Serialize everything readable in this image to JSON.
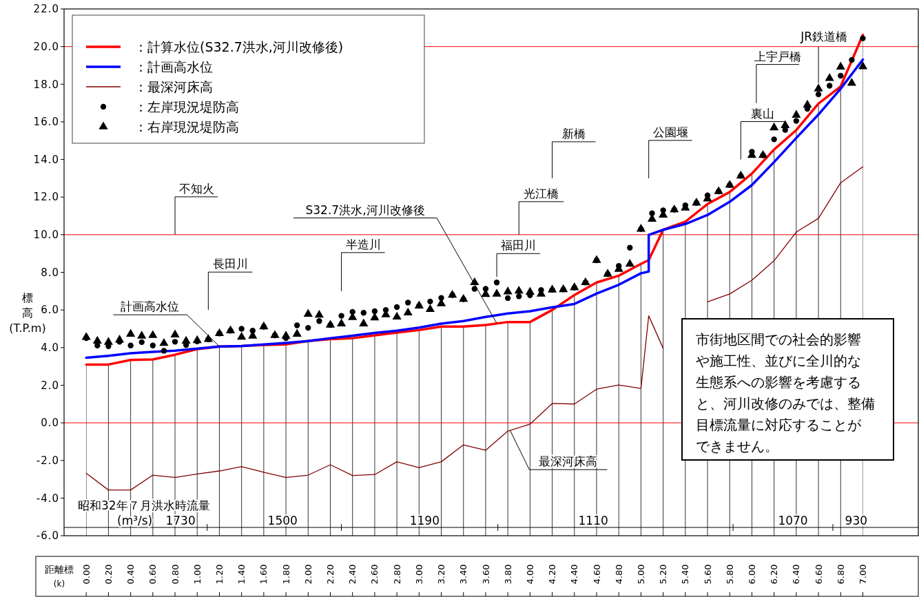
{
  "chart_data": {
    "type": "line",
    "ylabel": "標高 (T.P.m)",
    "xlabel": "距離標 (k)",
    "x": [
      0,
      0.1,
      0.2,
      0.3,
      0.4,
      0.5,
      0.6,
      0.7,
      0.8,
      0.9,
      1.0,
      1.1,
      1.2,
      1.3,
      1.4,
      1.5,
      1.6,
      1.7,
      1.8,
      1.9,
      2.0,
      2.1,
      2.2,
      2.3,
      2.4,
      2.5,
      2.6,
      2.7,
      2.8,
      2.9,
      3.0,
      3.1,
      3.2,
      3.3,
      3.4,
      3.5,
      3.6,
      3.7,
      3.8,
      3.9,
      4.0,
      4.1,
      4.2,
      4.3,
      4.4,
      4.5,
      4.6,
      4.7,
      4.8,
      4.9,
      5.0,
      5.1,
      5.2,
      5.3,
      5.4,
      5.5,
      5.6,
      5.7,
      5.8,
      5.9,
      6.0,
      6.1,
      6.2,
      6.3,
      6.4,
      6.5,
      6.6,
      6.7,
      6.8,
      6.9,
      7.0
    ],
    "series": [
      {
        "name": "：計算水位(S32.7洪水,河川改修後)",
        "color": "#ff0000",
        "x": [
          0,
          0.2,
          0.4,
          0.6,
          0.8,
          1.0,
          1.2,
          1.4,
          1.6,
          1.8,
          2.0,
          2.2,
          2.4,
          2.6,
          2.8,
          3.0,
          3.2,
          3.4,
          3.6,
          3.8,
          4.0,
          4.2,
          4.4,
          4.6,
          4.8,
          5.0,
          5.07,
          5.2,
          5.4,
          5.6,
          5.8,
          6.0,
          6.2,
          6.4,
          6.6,
          6.8,
          7.0
        ],
        "values": [
          3.1,
          3.1,
          3.34,
          3.37,
          3.62,
          3.92,
          4.06,
          4.08,
          4.14,
          4.17,
          4.35,
          4.45,
          4.5,
          4.65,
          4.8,
          4.93,
          5.12,
          5.12,
          5.2,
          5.36,
          5.36,
          6.0,
          6.79,
          7.46,
          7.82,
          8.45,
          8.65,
          10.26,
          10.69,
          11.63,
          12.27,
          13.25,
          14.53,
          15.56,
          16.97,
          17.88,
          20.62
        ]
      },
      {
        "name": "：計画高水位",
        "color": "#0000ff",
        "x": [
          0,
          0.2,
          0.4,
          0.6,
          0.8,
          1.0,
          1.2,
          1.4,
          1.6,
          1.8,
          2.0,
          2.2,
          2.4,
          2.6,
          2.8,
          3.0,
          3.2,
          3.4,
          3.6,
          3.8,
          4.0,
          4.2,
          4.4,
          4.6,
          4.8,
          5.0,
          5.07,
          5.07,
          5.2,
          5.4,
          5.6,
          5.8,
          6.0,
          6.2,
          6.4,
          6.6,
          6.8,
          7.0
        ],
        "values": [
          3.46,
          3.56,
          3.7,
          3.77,
          3.84,
          3.95,
          4.06,
          4.08,
          4.17,
          4.25,
          4.35,
          4.5,
          4.63,
          4.78,
          4.9,
          5.06,
          5.27,
          5.41,
          5.63,
          5.81,
          5.93,
          6.14,
          6.32,
          6.87,
          7.34,
          7.95,
          8.04,
          9.99,
          10.26,
          10.57,
          11.05,
          11.75,
          12.64,
          13.86,
          15.14,
          16.39,
          17.76,
          19.31
        ]
      },
      {
        "name": "：最深河床高",
        "color": "#800000",
        "x": [
          0,
          0.2,
          0.4,
          0.6,
          0.8,
          1.0,
          1.2,
          1.4,
          1.6,
          1.8,
          2.0,
          2.2,
          2.4,
          2.6,
          2.8,
          3.0,
          3.2,
          3.4,
          3.6,
          3.8,
          4.0,
          4.2,
          4.4,
          4.6,
          4.8,
          5.0,
          5.07,
          5.2,
          5.4,
          5.6,
          5.8,
          6.0,
          6.2,
          6.4,
          6.6,
          6.8,
          7.0
        ],
        "values": [
          -2.68,
          -3.57,
          -3.57,
          -2.78,
          -2.9,
          -2.72,
          -2.56,
          -2.33,
          -2.63,
          -2.9,
          -2.78,
          -2.23,
          -2.8,
          -2.75,
          -2.07,
          -2.38,
          -2.07,
          -1.17,
          -1.46,
          -0.44,
          -0.07,
          1.03,
          1.0,
          1.79,
          2.01,
          1.83,
          5.69,
          3.96,
          null,
          6.43,
          6.85,
          7.58,
          8.62,
          10.14,
          10.87,
          12.76,
          13.61
        ]
      },
      {
        "name": "：左岸現況堤防高",
        "type": "scatter",
        "marker": "circle",
        "color": "#000000",
        "values": [
          4.5,
          4.11,
          4.07,
          4.31,
          4.11,
          4.29,
          4.11,
          3.83,
          4.31,
          4.14,
          4.33,
          4.44,
          4.75,
          4.9,
          5.0,
          4.9,
          5.11,
          4.65,
          4.5,
          5.18,
          5.05,
          5.41,
          5.2,
          5.69,
          5.9,
          5.85,
          5.93,
          6.0,
          6.15,
          6.39,
          6.22,
          6.45,
          6.64,
          6.79,
          6.57,
          7.12,
          7.12,
          7.46,
          6.63,
          6.73,
          6.78,
          7.06,
          7.07,
          7.09,
          7.19,
          7.46,
          8.64,
          7.91,
          8.34,
          9.31,
          10.3,
          11.14,
          11.3,
          11.33,
          11.56,
          11.69,
          12.09,
          12.3,
          12.64,
          13.13,
          14.41,
          14.22,
          15.07,
          15.57,
          16.05,
          16.69,
          17.46,
          17.92,
          18.45,
          19.29,
          20.44
        ]
      },
      {
        "name": "：右岸現況堤防高",
        "type": "scatter",
        "marker": "triangle",
        "color": "#000000",
        "values": [
          4.55,
          4.35,
          4.29,
          4.41,
          4.72,
          4.62,
          4.65,
          4.23,
          4.68,
          4.35,
          4.38,
          4.44,
          4.75,
          4.9,
          4.56,
          4.62,
          5.11,
          4.65,
          4.62,
          4.72,
          5.78,
          5.73,
          5.2,
          5.27,
          5.6,
          5.27,
          5.59,
          5.75,
          5.63,
          5.85,
          6.22,
          6.03,
          6.34,
          6.79,
          6.57,
          7.46,
          6.83,
          6.85,
          6.97,
          7.01,
          6.95,
          6.85,
          7.07,
          7.09,
          7.19,
          7.46,
          8.64,
          7.91,
          8.17,
          8.44,
          10.3,
          10.83,
          11.05,
          11.33,
          11.42,
          11.69,
          11.91,
          12.3,
          12.64,
          13.13,
          14.22,
          14.22,
          15.69,
          15.81,
          16.36,
          16.9,
          17.76,
          18.31,
          18.92,
          18.06,
          18.94
        ]
      }
    ],
    "xlim": [
      -0.2,
      7.5
    ],
    "xticks": [
      {
        "value": 0,
        "label": "0.00"
      },
      {
        "value": 0.2,
        "label": "0.20"
      },
      {
        "value": 0.4,
        "label": "0.40"
      },
      {
        "value": 0.6,
        "label": "0.60"
      },
      {
        "value": 0.8,
        "label": "0.80"
      },
      {
        "value": 1.0,
        "label": "1.00"
      },
      {
        "value": 1.2,
        "label": "1.20"
      },
      {
        "value": 1.4,
        "label": "1.40"
      },
      {
        "value": 1.6,
        "label": "1.60"
      },
      {
        "value": 1.8,
        "label": "1.80"
      },
      {
        "value": 2.0,
        "label": "2.00"
      },
      {
        "value": 2.2,
        "label": "2.20"
      },
      {
        "value": 2.4,
        "label": "2.40"
      },
      {
        "value": 2.6,
        "label": "2.60"
      },
      {
        "value": 2.8,
        "label": "2.80"
      },
      {
        "value": 3.0,
        "label": "3.00"
      },
      {
        "value": 3.2,
        "label": "3.20"
      },
      {
        "value": 3.4,
        "label": "3.40"
      },
      {
        "value": 3.6,
        "label": "3.60"
      },
      {
        "value": 3.8,
        "label": "3.80"
      },
      {
        "value": 4.0,
        "label": "4.00"
      },
      {
        "value": 4.2,
        "label": "4.20"
      },
      {
        "value": 4.4,
        "label": "4.40"
      },
      {
        "value": 4.6,
        "label": "4.60"
      },
      {
        "value": 4.8,
        "label": "4.80"
      },
      {
        "value": 5.0,
        "label": "5.00"
      },
      {
        "value": 5.2,
        "label": "5.20"
      },
      {
        "value": 5.4,
        "label": "5.40"
      },
      {
        "value": 5.6,
        "label": "5.60"
      },
      {
        "value": 5.8,
        "label": "5.80"
      },
      {
        "value": 6.0,
        "label": "6.00"
      },
      {
        "value": 6.2,
        "label": "6.20"
      },
      {
        "value": 6.4,
        "label": "6.40"
      },
      {
        "value": 6.6,
        "label": "6.60"
      },
      {
        "value": 6.8,
        "label": "6.80"
      },
      {
        "value": 7.0,
        "label": "7.00"
      }
    ],
    "ylim": [
      -6,
      22
    ],
    "yticks": [
      {
        "value": -6,
        "label": "-6.0"
      },
      {
        "value": -4,
        "label": "-4.0"
      },
      {
        "value": -2,
        "label": "-2.0"
      },
      {
        "value": 0,
        "label": "0.0"
      },
      {
        "value": 2,
        "label": "2.0"
      },
      {
        "value": 4,
        "label": "4.0"
      },
      {
        "value": 6,
        "label": "6.0"
      },
      {
        "value": 8,
        "label": "8.0"
      },
      {
        "value": 10,
        "label": "10.0"
      },
      {
        "value": 12,
        "label": "12.0"
      },
      {
        "value": 14,
        "label": "14.0"
      },
      {
        "value": 16,
        "label": "16.0"
      },
      {
        "value": 18,
        "label": "18.0"
      },
      {
        "value": 20,
        "label": "20.0"
      },
      {
        "value": 22,
        "label": "22.0"
      }
    ],
    "grid": "x",
    "legend": "top left",
    "ref_lines": [
      {
        "axis": "y",
        "value": 0,
        "color": "#ff0000"
      },
      {
        "axis": "y",
        "value": 10,
        "color": "#ff0000"
      },
      {
        "axis": "y",
        "value": 20,
        "color": "#ff0000"
      },
      {
        "axis": "y",
        "value": -5.56,
        "color": "#000000"
      }
    ],
    "annotations": [
      {
        "text": "不知火",
        "x": 0.8,
        "y": 10
      },
      "長田川",
      {
        "text": "計画高水位",
        "x": 1.2,
        "y": 4.06
      },
      "半造川",
      {
        "text": "S32.7洪水,河川改修後",
        "x": 3.7,
        "y": 5.29
      },
      {
        "text": "福田川",
        "x": 3.7,
        "y": 7.46
      },
      {
        "text": "光江橋",
        "x": 3.9,
        "y": 10
      },
      "新橋",
      "公園堰",
      "裏山",
      "上宇戸橋",
      {
        "text": "JR鉄道橋",
        "x": 6.6,
        "y": 17.76
      },
      {
        "text": "最深河床高",
        "x": 3.82,
        "y": -0.4
      },
      "昭和32年７月洪水時流量",
      "(m³/s)",
      "市街地区間での社会的影響や施工性、並びに全川的な生態系への影響を考慮すると、河川改修のみでは、整備目標流量に対応することができません。",
      "1730",
      "1500",
      "1190",
      "1110",
      "1070",
      "930"
    ]
  }
}
